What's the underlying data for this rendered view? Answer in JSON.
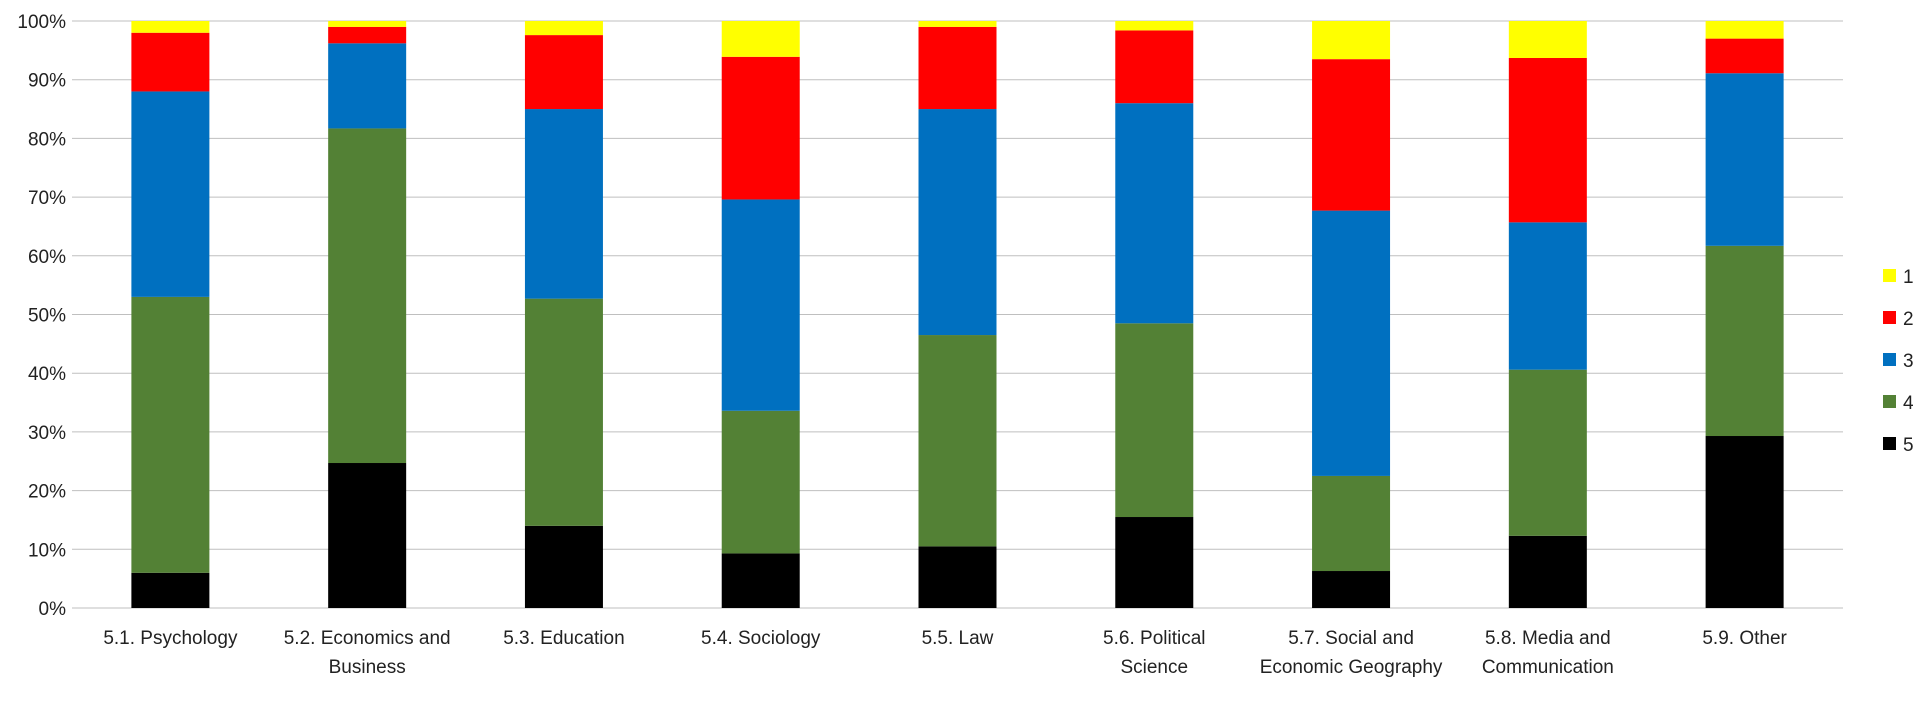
{
  "chart_data": {
    "type": "bar",
    "stacked": true,
    "percent_stacked": true,
    "categories": [
      "5.1. Psychology",
      "5.2. Economics and Business",
      "5.3. Education",
      "5.4. Sociology",
      "5.5. Law",
      "5.6. Political Science",
      "5.7. Social and Economic Geography",
      "5.8. Media and Communication",
      "5.9. Other"
    ],
    "series": [
      {
        "name": "5",
        "color": "#000000",
        "values": [
          6,
          24.7,
          14,
          9.3,
          10.5,
          15.5,
          6.3,
          12.3,
          29.3
        ]
      },
      {
        "name": "4",
        "color": "#538135",
        "values": [
          47,
          57,
          38.7,
          24.3,
          36,
          33,
          16.2,
          28.3,
          32.4
        ]
      },
      {
        "name": "3",
        "color": "#0070C0",
        "values": [
          35,
          14.5,
          32.3,
          36,
          38.5,
          37.5,
          45.2,
          25.1,
          29.4
        ]
      },
      {
        "name": "2",
        "color": "#FF0000",
        "values": [
          10,
          2.8,
          12.6,
          24.3,
          14,
          12.4,
          25.8,
          28,
          5.9
        ]
      },
      {
        "name": "1",
        "color": "#FFFF00",
        "values": [
          2,
          1,
          2.4,
          6.1,
          1,
          1.6,
          6.5,
          6.3,
          3
        ]
      }
    ],
    "legend_order": [
      "1",
      "2",
      "3",
      "4",
      "5"
    ],
    "legend_position": "right",
    "ylim": [
      0,
      100
    ],
    "yticks": [
      "0%",
      "10%",
      "20%",
      "30%",
      "40%",
      "50%",
      "60%",
      "70%",
      "80%",
      "90%",
      "100%"
    ],
    "grid": true,
    "title": "",
    "xlabel": "",
    "ylabel": ""
  }
}
